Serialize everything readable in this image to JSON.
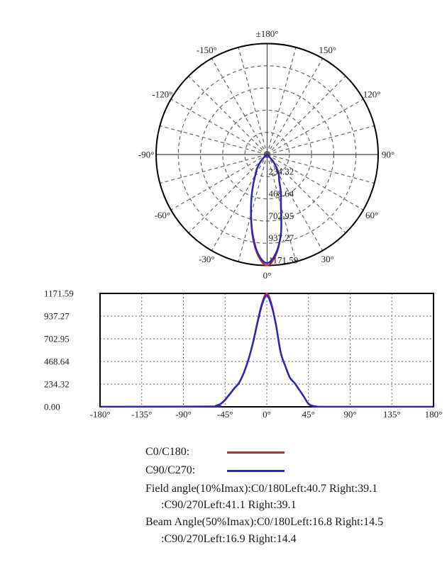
{
  "colors": {
    "c0_c180": "#c62828",
    "c90_c270": "#2626c6",
    "grid": "#666666",
    "axis": "#444444",
    "frame": "#000000",
    "tick_text": "#222222"
  },
  "legend": {
    "c0_label": "C0/C180:",
    "c90_label": "C90/C270:"
  },
  "annotations": {
    "field_line1": "Field angle(10%Imax):C0/180Left:40.7 Right:39.1",
    "field_line2": ":C90/270Left:41.1 Right:39.1",
    "beam_line1": "Beam Angle(50%Imax):C0/180Left:16.8 Right:14.5",
    "beam_line2": ":C90/270Left:16.9 Right:14.4"
  },
  "chart_data": [
    {
      "type": "polar-line",
      "rmax": 1171.59,
      "spoke_step_deg": 15,
      "ring_labels": [
        "234.32",
        "468.64",
        "702.95",
        "937.27",
        "1171.59"
      ],
      "angle_ticks": [
        {
          "angle": 0,
          "label": "0°"
        },
        {
          "angle": 30,
          "label": "30°"
        },
        {
          "angle": 60,
          "label": "60°"
        },
        {
          "angle": 90,
          "label": "90°"
        },
        {
          "angle": 120,
          "label": "120°"
        },
        {
          "angle": 150,
          "label": "150°"
        },
        {
          "angle": 180,
          "label": "±180°"
        },
        {
          "angle": -150,
          "label": "-150°"
        },
        {
          "angle": -120,
          "label": "-120°"
        },
        {
          "angle": -90,
          "label": "-90°"
        },
        {
          "angle": -60,
          "label": "-60°"
        },
        {
          "angle": -30,
          "label": "-30°"
        }
      ],
      "series": [
        {
          "name": "C0/C180",
          "color_key": "c0_c180",
          "angles": [
            -180,
            -60,
            -55,
            -50,
            -45,
            -40,
            -35,
            -30,
            -25,
            -20,
            -15,
            -10,
            -5,
            0,
            5,
            10,
            15,
            20,
            25,
            30,
            35,
            40,
            45,
            50,
            55,
            60,
            180
          ],
          "values": [
            0,
            3,
            10,
            28,
            70,
            130,
            190,
            245,
            345,
            480,
            660,
            880,
            1075,
            1171.59,
            1065,
            840,
            560,
            420,
            300,
            245,
            175,
            105,
            30,
            8,
            2,
            0,
            0
          ]
        },
        {
          "name": "C90/C270",
          "color_key": "c90_c270",
          "angles": [
            -180,
            -60,
            -55,
            -50,
            -45,
            -40,
            -35,
            -30,
            -25,
            -20,
            -15,
            -10,
            -5,
            0,
            5,
            10,
            15,
            20,
            25,
            30,
            35,
            40,
            45,
            50,
            55,
            60,
            180
          ],
          "values": [
            0,
            3,
            11,
            30,
            74,
            133,
            193,
            248,
            348,
            484,
            656,
            868,
            1058,
            1148,
            1048,
            843,
            563,
            422,
            302,
            246,
            177,
            107,
            32,
            9,
            2,
            0,
            0
          ]
        }
      ]
    },
    {
      "type": "line",
      "xlim": [
        -180,
        180
      ],
      "ylim": [
        0,
        1171.59
      ],
      "x_ticks": [
        {
          "value": -180,
          "label": "-180°"
        },
        {
          "value": -135,
          "label": "-135°"
        },
        {
          "value": -90,
          "label": "-90°"
        },
        {
          "value": -45,
          "label": "-45°"
        },
        {
          "value": 0,
          "label": "0°"
        },
        {
          "value": 45,
          "label": "45°"
        },
        {
          "value": 90,
          "label": "90°"
        },
        {
          "value": 135,
          "label": "135°"
        },
        {
          "value": 180,
          "label": "180°"
        }
      ],
      "y_ticks": [
        {
          "value": 1171.59,
          "label": "1171.59"
        },
        {
          "value": 937.27,
          "label": "937.27"
        },
        {
          "value": 702.95,
          "label": "702.95"
        },
        {
          "value": 468.64,
          "label": "468.64"
        },
        {
          "value": 234.32,
          "label": "234.32"
        },
        {
          "value": 0,
          "label": "0.00"
        }
      ],
      "series": [
        {
          "name": "C0/C180",
          "color_key": "c0_c180",
          "angles": [
            -180,
            -60,
            -55,
            -50,
            -45,
            -40,
            -35,
            -30,
            -25,
            -20,
            -15,
            -10,
            -5,
            0,
            5,
            10,
            15,
            20,
            25,
            30,
            35,
            40,
            45,
            50,
            55,
            60,
            180
          ],
          "values": [
            0,
            3,
            10,
            28,
            70,
            130,
            190,
            245,
            345,
            480,
            660,
            880,
            1075,
            1171.59,
            1065,
            840,
            560,
            420,
            300,
            245,
            175,
            105,
            30,
            8,
            2,
            0,
            0
          ]
        },
        {
          "name": "C90/C270",
          "color_key": "c90_c270",
          "angles": [
            -180,
            -60,
            -55,
            -50,
            -45,
            -40,
            -35,
            -30,
            -25,
            -20,
            -15,
            -10,
            -5,
            0,
            5,
            10,
            15,
            20,
            25,
            30,
            35,
            40,
            45,
            50,
            55,
            60,
            180
          ],
          "values": [
            0,
            3,
            11,
            30,
            74,
            133,
            193,
            248,
            348,
            484,
            656,
            868,
            1058,
            1148,
            1048,
            843,
            563,
            422,
            302,
            246,
            177,
            107,
            32,
            9,
            2,
            0,
            0
          ]
        }
      ]
    }
  ]
}
